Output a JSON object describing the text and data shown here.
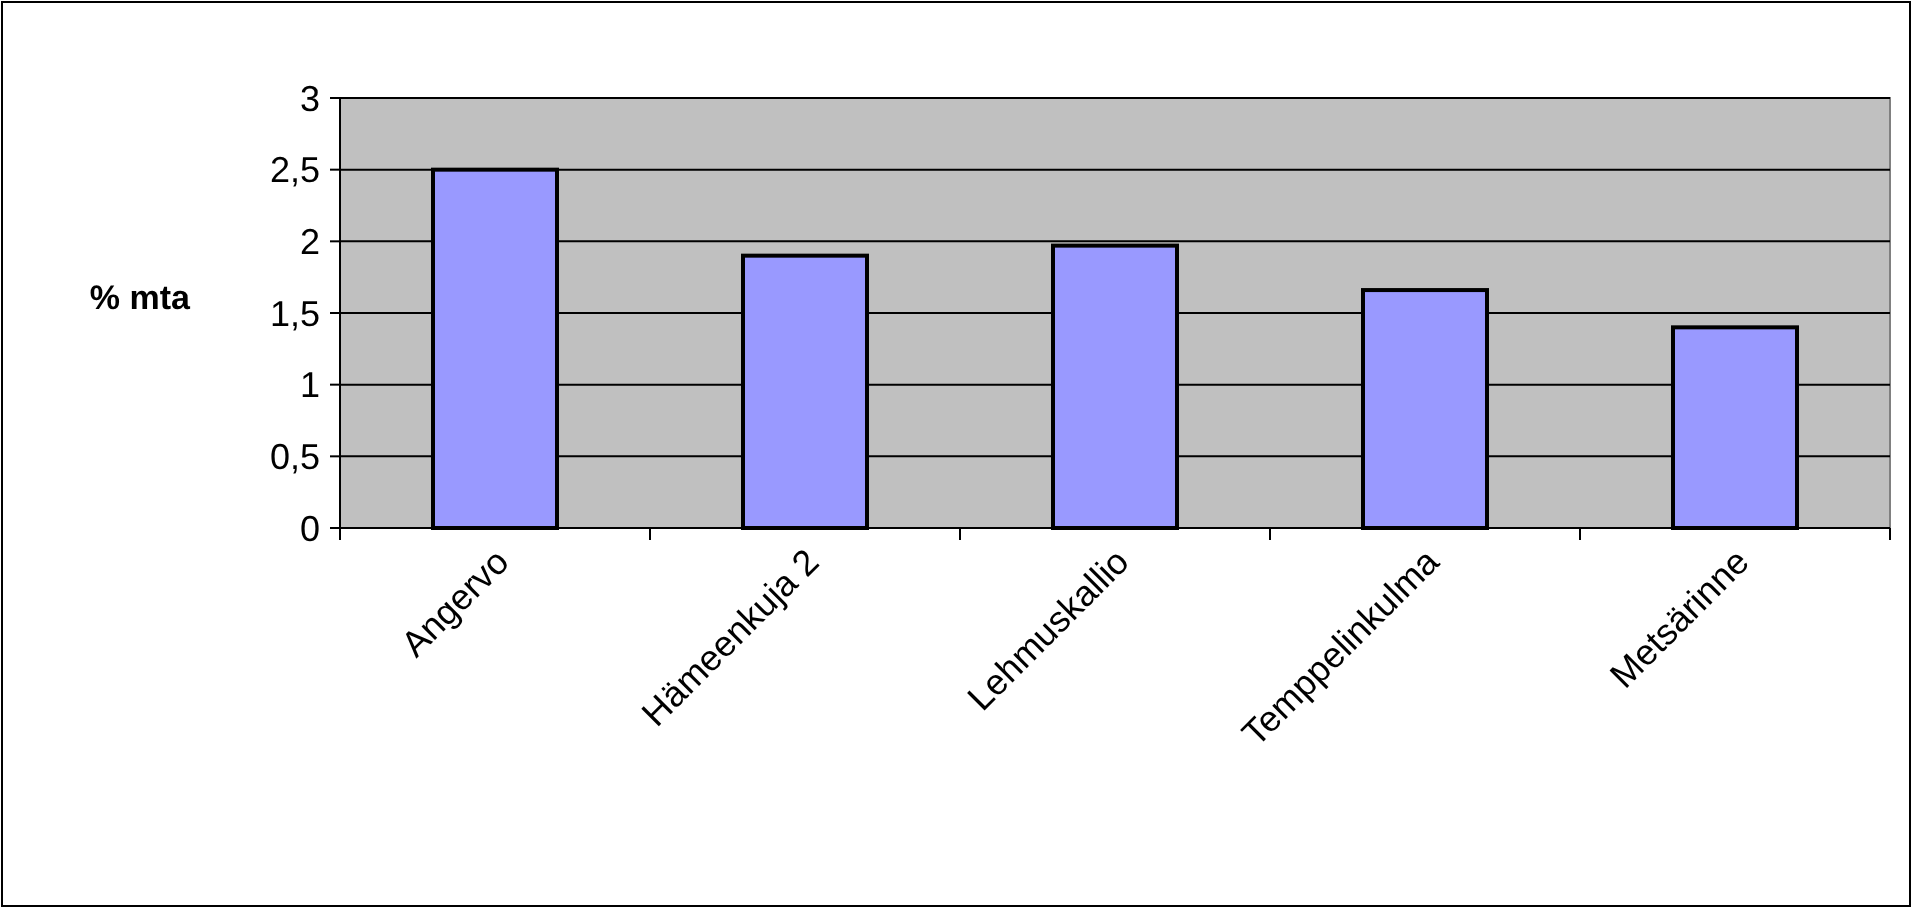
{
  "chart_data": {
    "type": "bar",
    "ylabel": "% mta",
    "categories": [
      "Angervo",
      "Hämeenkuja 2",
      "Lehmuskallio",
      "Temppelinkulma",
      "Metsärinne"
    ],
    "values": [
      2.5,
      1.9,
      1.97,
      1.66,
      1.4
    ],
    "color": "#9999ff",
    "ylim": [
      0,
      3
    ],
    "yticks": [
      0,
      {
        "value": 0.5,
        "label": "0,5"
      },
      1,
      {
        "value": 1.5,
        "label": "1,5"
      },
      2,
      {
        "value": 2.5,
        "label": "2,5"
      },
      3
    ],
    "grid": "y"
  }
}
